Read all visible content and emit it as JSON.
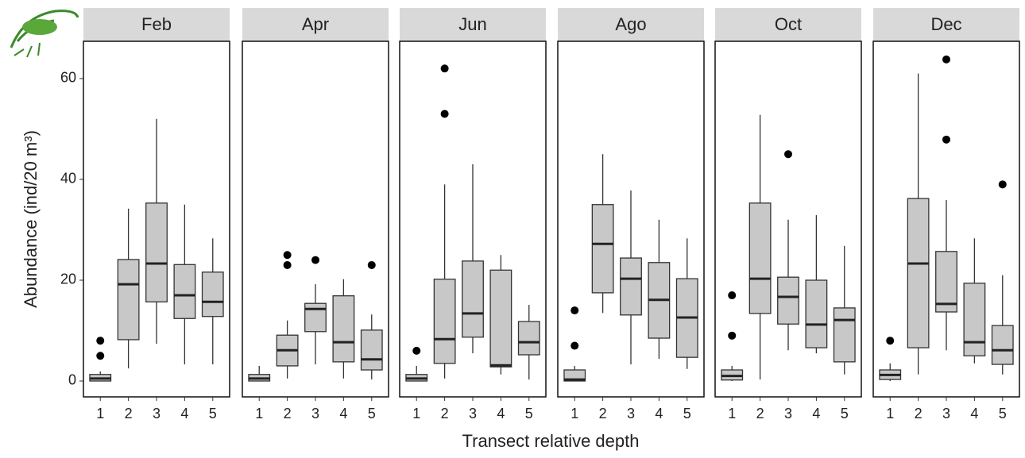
{
  "chart_data": {
    "type": "box",
    "ylabel": "Abundance (ind/20 m³)",
    "xlabel": "Transect relative depth",
    "ylim": [
      -3.15,
      67.4
    ],
    "yticks": [
      0,
      20,
      40,
      60
    ],
    "color": "#c8c8c8",
    "facets": [
      {
        "title": "Feb",
        "categories": [
          "1",
          "2",
          "3",
          "4",
          "5"
        ],
        "boxes": [
          {
            "min": 0,
            "q1": 0,
            "median": 0.5,
            "q3": 1.3,
            "max": 1.9,
            "outliers": [
              8,
              5
            ]
          },
          {
            "min": 2.5,
            "q1": 8.2,
            "median": 19.2,
            "q3": 24.1,
            "max": 34.2,
            "outliers": []
          },
          {
            "min": 7.4,
            "q1": 15.7,
            "median": 23.3,
            "q3": 35.3,
            "max": 52,
            "outliers": []
          },
          {
            "min": 3.3,
            "q1": 12.4,
            "median": 17,
            "q3": 23.1,
            "max": 35,
            "outliers": []
          },
          {
            "min": 3.3,
            "q1": 12.8,
            "median": 15.7,
            "q3": 21.6,
            "max": 28.3,
            "outliers": []
          }
        ]
      },
      {
        "title": "Apr",
        "categories": [
          "1",
          "2",
          "3",
          "4",
          "5"
        ],
        "boxes": [
          {
            "min": 0,
            "q1": 0,
            "median": 0.5,
            "q3": 1.3,
            "max": 3,
            "outliers": []
          },
          {
            "min": 0.5,
            "q1": 3,
            "median": 6.1,
            "q3": 9.1,
            "max": 12,
            "outliers": [
              25,
              23
            ]
          },
          {
            "min": 3.3,
            "q1": 9.8,
            "median": 14.3,
            "q3": 15.4,
            "max": 19.2,
            "outliers": [
              24
            ]
          },
          {
            "min": 0.5,
            "q1": 3.8,
            "median": 7.7,
            "q3": 16.9,
            "max": 20.2,
            "outliers": []
          },
          {
            "min": 0.3,
            "q1": 2.2,
            "median": 4.3,
            "q3": 10.1,
            "max": 13.2,
            "outliers": [
              23
            ]
          }
        ]
      },
      {
        "title": "Jun",
        "categories": [
          "1",
          "2",
          "3",
          "4",
          "5"
        ],
        "boxes": [
          {
            "min": 0,
            "q1": 0,
            "median": 0.5,
            "q3": 1.3,
            "max": 3,
            "outliers": [
              6
            ]
          },
          {
            "min": 0.5,
            "q1": 3.5,
            "median": 8.3,
            "q3": 20.2,
            "max": 39,
            "outliers": [
              62,
              53
            ]
          },
          {
            "min": 5.5,
            "q1": 8.7,
            "median": 13.4,
            "q3": 23.8,
            "max": 43,
            "outliers": []
          },
          {
            "min": 1.3,
            "q1": 2.8,
            "median": 3.1,
            "q3": 22,
            "max": 25,
            "outliers": []
          },
          {
            "min": 0.3,
            "q1": 5.2,
            "median": 7.7,
            "q3": 11.8,
            "max": 15.1,
            "outliers": []
          }
        ]
      },
      {
        "title": "Ago",
        "categories": [
          "1",
          "2",
          "3",
          "4",
          "5"
        ],
        "boxes": [
          {
            "min": 0,
            "q1": 0,
            "median": 0.3,
            "q3": 2.2,
            "max": 3,
            "outliers": [
              14,
              7
            ]
          },
          {
            "min": 13.5,
            "q1": 17.5,
            "median": 27.2,
            "q3": 35,
            "max": 45,
            "outliers": []
          },
          {
            "min": 3.3,
            "q1": 13.1,
            "median": 20.3,
            "q3": 24.4,
            "max": 37.8,
            "outliers": []
          },
          {
            "min": 4.4,
            "q1": 8.5,
            "median": 16.1,
            "q3": 23.5,
            "max": 32,
            "outliers": []
          },
          {
            "min": 2.4,
            "q1": 4.7,
            "median": 12.6,
            "q3": 20.3,
            "max": 28.3,
            "outliers": []
          }
        ]
      },
      {
        "title": "Oct",
        "categories": [
          "1",
          "2",
          "3",
          "4",
          "5"
        ],
        "boxes": [
          {
            "min": 0,
            "q1": 0.2,
            "median": 1,
            "q3": 2.2,
            "max": 3,
            "outliers": [
              17,
              9
            ]
          },
          {
            "min": 0.3,
            "q1": 13.4,
            "median": 20.3,
            "q3": 35.3,
            "max": 52.8,
            "outliers": []
          },
          {
            "min": 6.1,
            "q1": 11.3,
            "median": 16.7,
            "q3": 20.6,
            "max": 32,
            "outliers": [
              45
            ]
          },
          {
            "min": 5.5,
            "q1": 6.6,
            "median": 11.2,
            "q3": 20,
            "max": 32.9,
            "outliers": []
          },
          {
            "min": 1.3,
            "q1": 3.8,
            "median": 12.1,
            "q3": 14.5,
            "max": 26.8,
            "outliers": []
          }
        ]
      },
      {
        "title": "Dec",
        "categories": [
          "1",
          "2",
          "3",
          "4",
          "5"
        ],
        "boxes": [
          {
            "min": 0,
            "q1": 0.3,
            "median": 1.2,
            "q3": 2.2,
            "max": 3.5,
            "outliers": [
              8
            ]
          },
          {
            "min": 1.3,
            "q1": 6.6,
            "median": 23.3,
            "q3": 36.2,
            "max": 61,
            "outliers": []
          },
          {
            "min": 6.1,
            "q1": 13.7,
            "median": 15.3,
            "q3": 25.7,
            "max": 35.9,
            "outliers": [
              63.8,
              47.9
            ]
          },
          {
            "min": 3.5,
            "q1": 5,
            "median": 7.7,
            "q3": 19.4,
            "max": 28.3,
            "outliers": []
          },
          {
            "min": 1.3,
            "q1": 3.3,
            "median": 6.1,
            "q3": 11,
            "max": 21,
            "outliers": [
              39
            ]
          }
        ]
      }
    ]
  }
}
